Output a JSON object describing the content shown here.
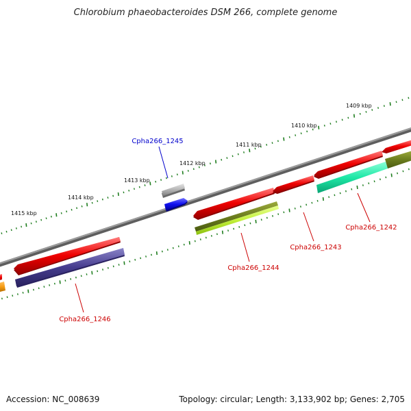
{
  "title": "Chlorobium phaeobacteroides DSM 266, complete genome",
  "footer": {
    "accession": "Accession: NC_008639",
    "summary": "Topology: circular; Length: 3,133,902 bp; Genes: 2,705"
  },
  "colors": {
    "backbone": "#808080",
    "tick": "#1e7d1e",
    "label_forward_strand": "#0000cc",
    "label_reverse_strand": "#cc0000"
  },
  "scale_labels": [
    "1409 kbp",
    "1410 kbp",
    "1411 kbp",
    "1412 kbp",
    "1413 kbp",
    "1414 kbp",
    "1415 kbp"
  ],
  "genes": [
    {
      "id": "Cpha266_1242",
      "label_color": "#cc0000"
    },
    {
      "id": "Cpha266_1243",
      "label_color": "#cc0000"
    },
    {
      "id": "Cpha266_1244",
      "label_color": "#cc0000"
    },
    {
      "id": "Cpha266_1245",
      "label_color": "#0000cc"
    },
    {
      "id": "Cpha266_1246",
      "label_color": "#cc0000"
    }
  ]
}
